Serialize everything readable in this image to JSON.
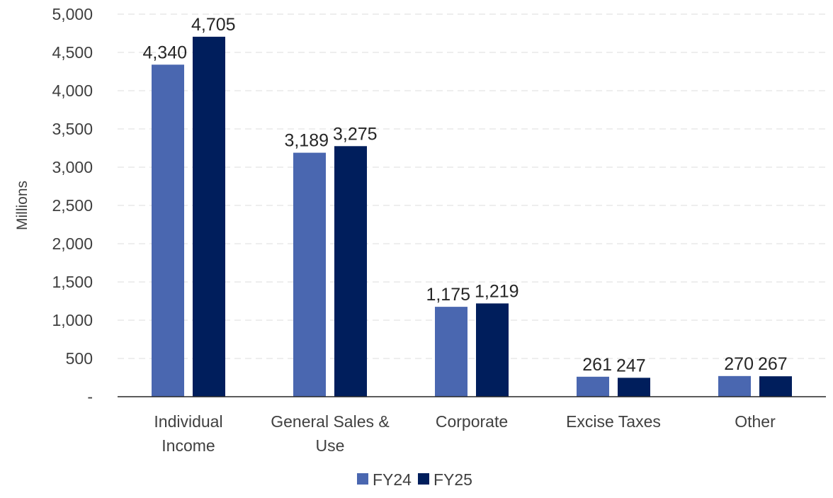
{
  "chart_data": {
    "type": "bar",
    "title": "",
    "xlabel": "",
    "ylabel": "Millions",
    "ylim": [
      0,
      5000
    ],
    "yticks": [
      0,
      500,
      1000,
      1500,
      2000,
      2500,
      3000,
      3500,
      4000,
      4500,
      5000
    ],
    "ytick_labels": [
      "-",
      "500",
      "1,000",
      "1,500",
      "2,000",
      "2,500",
      "3,000",
      "3,500",
      "4,000",
      "4,500",
      "5,000"
    ],
    "categories": [
      "Individual Income",
      "General Sales & Use",
      "Corporate",
      "Excise Taxes",
      "Other"
    ],
    "category_label_lines": [
      [
        "Individual",
        "Income"
      ],
      [
        "General Sales &",
        "Use"
      ],
      [
        "Corporate"
      ],
      [
        "Excise Taxes"
      ],
      [
        "Other"
      ]
    ],
    "series": [
      {
        "name": "FY24",
        "color": "#4a67b0",
        "values": [
          4340,
          3189,
          1175,
          261,
          270
        ],
        "labels": [
          "4,340",
          "3,189",
          "1,175",
          "261",
          "270"
        ]
      },
      {
        "name": "FY25",
        "color": "#001e5c",
        "values": [
          4705,
          3275,
          1219,
          247,
          267
        ],
        "labels": [
          "4,705",
          "3,275",
          "1,219",
          "247",
          "267"
        ]
      }
    ],
    "grid": true,
    "legend_position": "bottom-center"
  }
}
